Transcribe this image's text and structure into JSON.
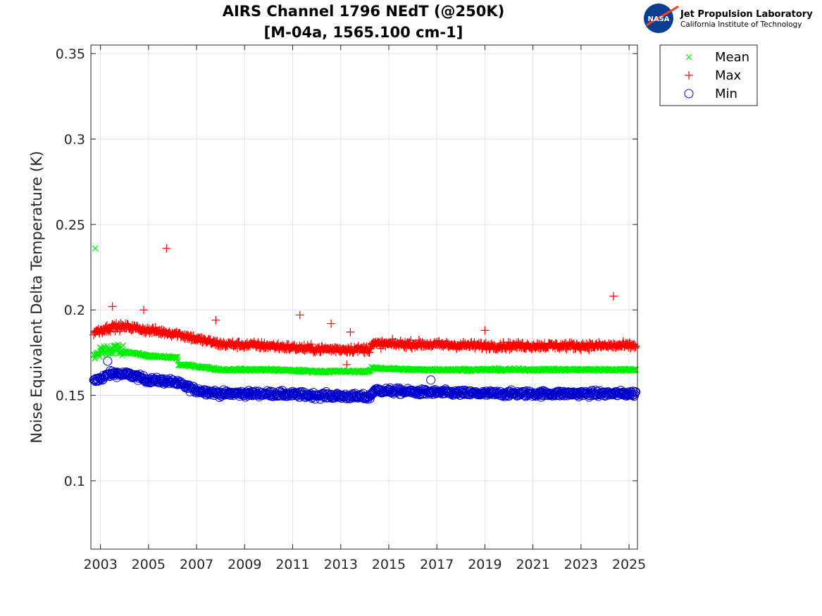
{
  "chart_data": {
    "type": "scatter",
    "title": "AIRS Channel 1796 NEdT (@250K)",
    "subtitle": "[M-04a, 1565.100 cm-1]",
    "xlabel": "",
    "ylabel": "Noise Equivalent Delta Temperature (K)",
    "xlim": [
      2002.6,
      2025.35
    ],
    "ylim": [
      0.06,
      0.355
    ],
    "x_ticks": [
      2003,
      2005,
      2007,
      2009,
      2011,
      2013,
      2015,
      2017,
      2019,
      2021,
      2023,
      2025
    ],
    "x_tick_labels": [
      "2003",
      "2005",
      "2007",
      "2009",
      "2011",
      "2013",
      "2015",
      "2017",
      "2019",
      "2021",
      "2023",
      "2025"
    ],
    "y_ticks": [
      0.1,
      0.15,
      0.2,
      0.25,
      0.3,
      0.35
    ],
    "y_tick_labels": [
      "0.1",
      "0.15",
      "0.2",
      "0.25",
      "0.3",
      "0.35"
    ],
    "grid": true,
    "legend_position": "outside-top-right",
    "series": [
      {
        "name": "Mean",
        "marker": "x",
        "color": "#00ee00",
        "trend": [
          [
            2002.7,
            0.172
          ],
          [
            2003.3,
            0.176
          ],
          [
            2003.8,
            0.176
          ],
          [
            2004.3,
            0.175
          ],
          [
            2005.0,
            0.173
          ],
          [
            2006.2,
            0.172
          ],
          [
            2006.25,
            0.168
          ],
          [
            2007.0,
            0.167
          ],
          [
            2008.0,
            0.165
          ],
          [
            2010.0,
            0.165
          ],
          [
            2012.0,
            0.164
          ],
          [
            2014.2,
            0.164
          ],
          [
            2014.3,
            0.166
          ],
          [
            2016.0,
            0.165
          ],
          [
            2019.0,
            0.165
          ],
          [
            2022.0,
            0.165
          ],
          [
            2025.3,
            0.165
          ]
        ],
        "outliers": [
          [
            2002.78,
            0.236
          ]
        ]
      },
      {
        "name": "Max",
        "marker": "+",
        "color": "#ff0000",
        "trend": [
          [
            2002.7,
            0.187
          ],
          [
            2003.5,
            0.19
          ],
          [
            2004.2,
            0.19
          ],
          [
            2005.0,
            0.188
          ],
          [
            2006.2,
            0.186
          ],
          [
            2007.0,
            0.183
          ],
          [
            2008.0,
            0.18
          ],
          [
            2010.0,
            0.179
          ],
          [
            2012.0,
            0.177
          ],
          [
            2014.2,
            0.177
          ],
          [
            2014.3,
            0.18
          ],
          [
            2016.0,
            0.18
          ],
          [
            2019.0,
            0.179
          ],
          [
            2022.0,
            0.179
          ],
          [
            2025.3,
            0.179
          ]
        ],
        "outliers": [
          [
            2005.75,
            0.236
          ],
          [
            2024.35,
            0.208
          ],
          [
            2011.3,
            0.197
          ],
          [
            2007.8,
            0.194
          ],
          [
            2012.6,
            0.192
          ],
          [
            2004.8,
            0.2
          ],
          [
            2003.5,
            0.202
          ],
          [
            2013.4,
            0.187
          ],
          [
            2019.0,
            0.188
          ],
          [
            2013.25,
            0.168
          ]
        ]
      },
      {
        "name": "Min",
        "marker": "o",
        "color": "#0000cc",
        "trend": [
          [
            2002.7,
            0.158
          ],
          [
            2003.5,
            0.163
          ],
          [
            2004.2,
            0.162
          ],
          [
            2005.0,
            0.159
          ],
          [
            2006.0,
            0.158
          ],
          [
            2007.0,
            0.153
          ],
          [
            2008.0,
            0.151
          ],
          [
            2010.0,
            0.151
          ],
          [
            2012.0,
            0.15
          ],
          [
            2014.2,
            0.149
          ],
          [
            2014.4,
            0.153
          ],
          [
            2016.0,
            0.152
          ],
          [
            2019.0,
            0.151
          ],
          [
            2022.0,
            0.151
          ],
          [
            2025.3,
            0.151
          ]
        ],
        "outliers": [
          [
            2016.75,
            0.159
          ],
          [
            2003.3,
            0.17
          ]
        ]
      }
    ]
  },
  "logo": {
    "badge_text": "NASA",
    "line1": "Jet Propulsion Laboratory",
    "line2": "California Institute of Technology"
  }
}
